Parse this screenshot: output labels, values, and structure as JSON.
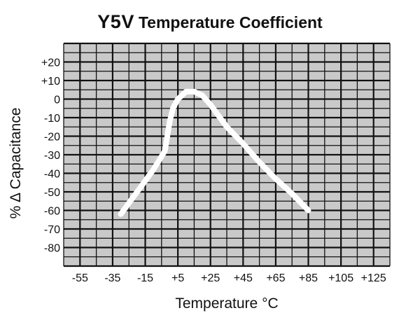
{
  "chart_data": {
    "type": "line",
    "title": "Y5V",
    "subtitle": "Temperature Coefficient",
    "xlabel": "Temperature °C",
    "ylabel": "% Δ Capacitance",
    "x_ticks": [
      "-55",
      "-35",
      "-15",
      "+5",
      "+25",
      "+45",
      "+65",
      "+85",
      "+105",
      "+125"
    ],
    "y_ticks": [
      "+20",
      "+10",
      "0",
      "-10",
      "-20",
      "-30",
      "-40",
      "-50",
      "-60",
      "-70",
      "-80"
    ],
    "xlim": [
      -65,
      135
    ],
    "ylim": [
      -90,
      30
    ],
    "grid": true,
    "background_color": "#c9c9c9",
    "grid_color": "#111111",
    "line_color": "#ffffff",
    "series": [
      {
        "x": [
          -30,
          -20,
          -10,
          -3,
          0,
          2,
          5,
          10,
          15,
          20,
          25,
          35,
          45,
          55,
          65,
          75,
          85
        ],
        "y": [
          -62,
          -50,
          -38,
          -28,
          -12,
          -5,
          0,
          4,
          4,
          2,
          -3,
          -15,
          -24,
          -34,
          -43,
          -51,
          -60
        ]
      }
    ]
  }
}
